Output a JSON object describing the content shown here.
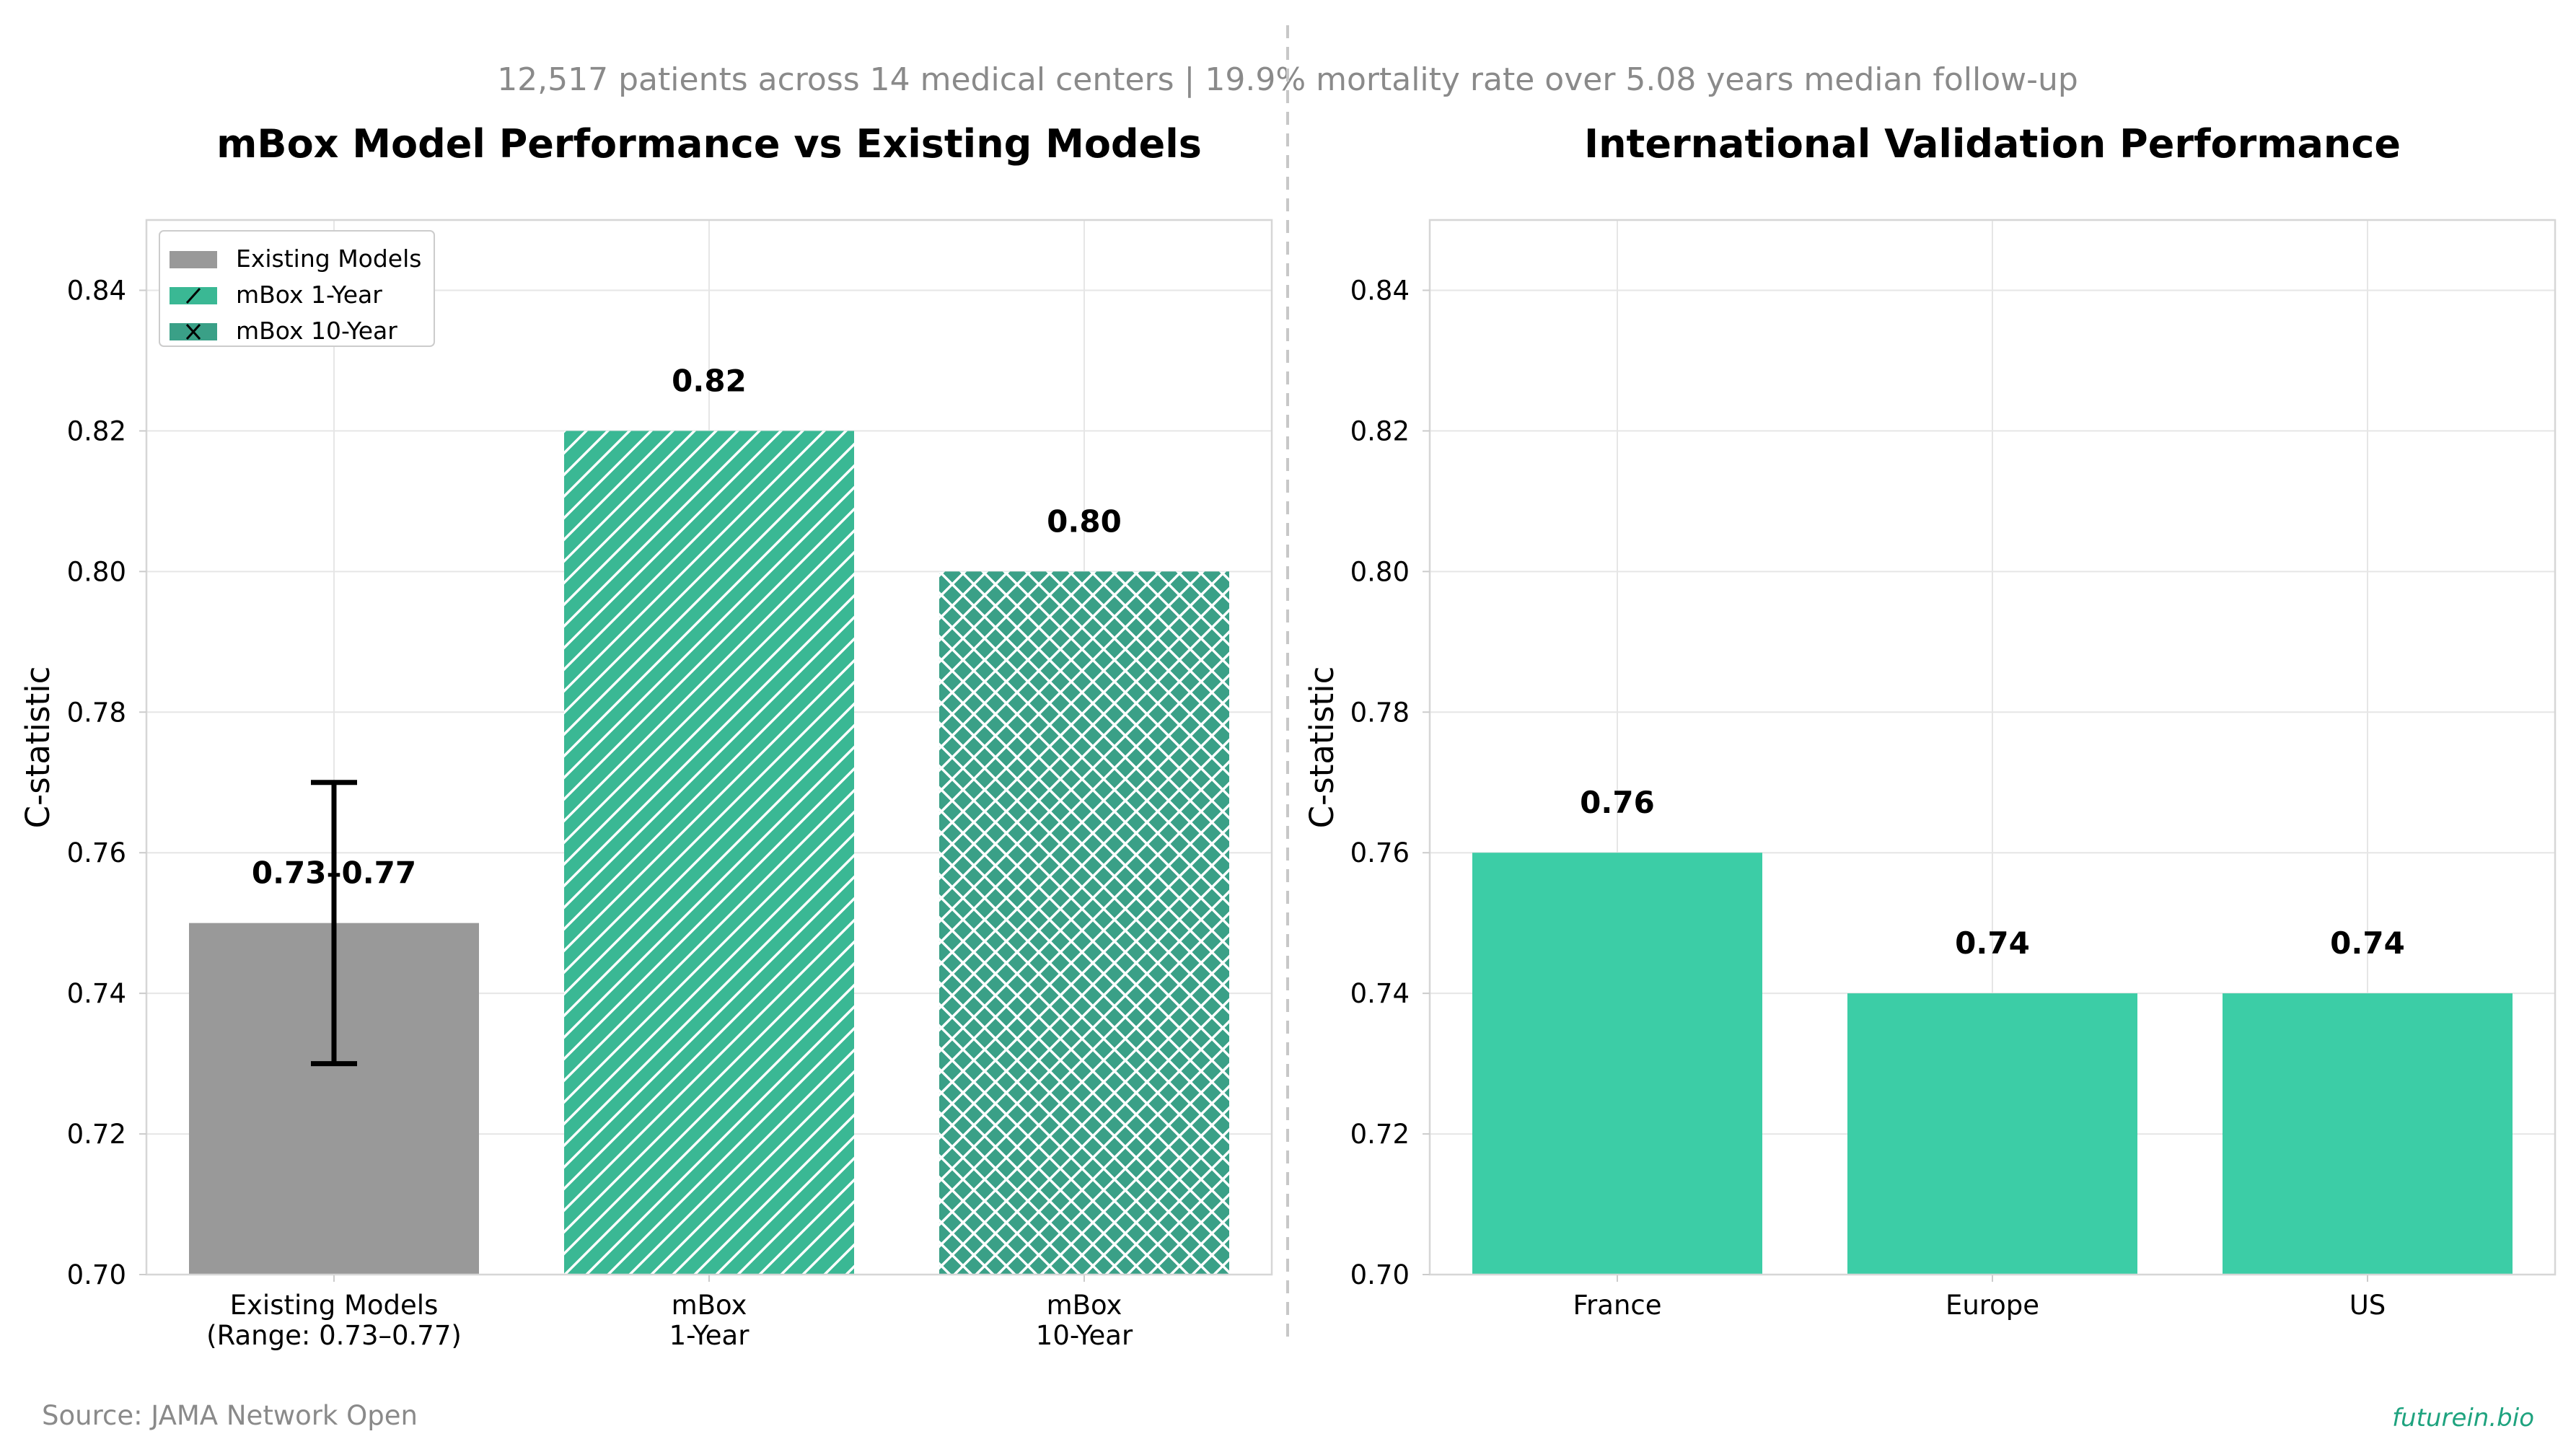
{
  "subtitle": "12,517 patients across 14 medical centers | 19.9% mortality rate over 5.08 years median follow-up",
  "source": "Source: JAMA Network Open",
  "brand": "futurein.bio",
  "colors": {
    "existing": "#999999",
    "mbox_1yr": "#3ab894",
    "mbox_10yr": "#3aa087",
    "validation": "#3ccda6",
    "brand": "#1fa37f",
    "muted_text": "#8a8a8a",
    "grid": "#e6e6e6",
    "frame": "#d6d6d6"
  },
  "chart_data": [
    {
      "type": "bar",
      "title": "mBox Model Performance vs Existing Models",
      "ylabel": "C-statistic",
      "ylim": [
        0.7,
        0.85
      ],
      "yticks": [
        "0.70",
        "0.72",
        "0.74",
        "0.76",
        "0.78",
        "0.80",
        "0.82",
        "0.84"
      ],
      "grid": true,
      "legend_position": "top-left",
      "legend": [
        "Existing Models",
        "mBox 1-Year",
        "mBox 10-Year"
      ],
      "bars": [
        {
          "category_lines": [
            "Existing Models",
            "(Range: 0.73–0.77)"
          ],
          "value": 0.75,
          "label": "0.73–0.77",
          "error_range": [
            0.73,
            0.77
          ],
          "pattern": "none",
          "color_key": "existing"
        },
        {
          "category_lines": [
            "mBox",
            "1-Year"
          ],
          "value": 0.82,
          "label": "0.82",
          "pattern": "diagonal",
          "color_key": "mbox_1yr"
        },
        {
          "category_lines": [
            "mBox",
            "10-Year"
          ],
          "value": 0.8,
          "label": "0.80",
          "pattern": "crosshatch",
          "color_key": "mbox_10yr"
        }
      ]
    },
    {
      "type": "bar",
      "title": "International Validation Performance",
      "ylabel": "C-statistic",
      "ylim": [
        0.7,
        0.85
      ],
      "yticks": [
        "0.70",
        "0.72",
        "0.74",
        "0.76",
        "0.78",
        "0.80",
        "0.82",
        "0.84"
      ],
      "grid": true,
      "bars": [
        {
          "category_lines": [
            "France"
          ],
          "value": 0.76,
          "label": "0.76",
          "color_key": "validation"
        },
        {
          "category_lines": [
            "Europe"
          ],
          "value": 0.74,
          "label": "0.74",
          "color_key": "validation"
        },
        {
          "category_lines": [
            "US"
          ],
          "value": 0.74,
          "label": "0.74",
          "color_key": "validation"
        }
      ]
    }
  ]
}
